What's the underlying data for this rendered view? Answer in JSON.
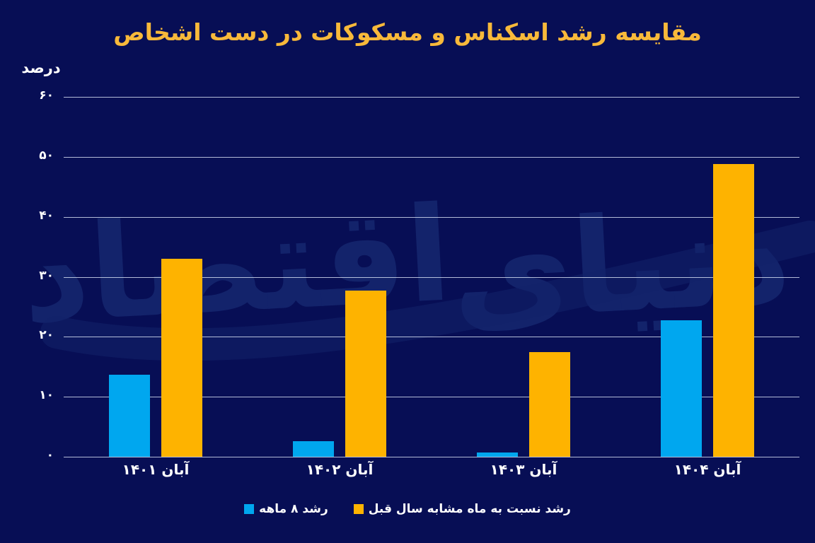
{
  "title": "مقایسه رشد اسکناس و مسکوکات در دست اشخاص",
  "watermark": {
    "text": "دنیای اقتصاد",
    "words": [
      "دنیای",
      "اقتصاد"
    ]
  },
  "y_axis_unit": "درصد",
  "colors": {
    "background": "#070e55",
    "title": "#f8b93a",
    "grid": "#dde6f7",
    "text": "#ffffff",
    "watermark": "#16276f",
    "blue": "#00a7ef",
    "orange": "#feb300"
  },
  "chart_data": {
    "type": "bar",
    "title": "مقایسه رشد اسکناس و مسکوکات در دست اشخاص",
    "ylabel": "درصد",
    "ylim": [
      0,
      60
    ],
    "grid": true,
    "legend_position": "bottom",
    "categories": [
      "آبان ۱۴۰۱",
      "آبان ۱۴۰۲",
      "آبان ۱۴۰۳",
      "آبان ۱۴۰۴"
    ],
    "ytick_values": [
      0,
      10,
      20,
      30,
      40,
      50,
      60
    ],
    "ytick_labels": [
      "۰",
      "۱۰",
      "۲۰",
      "۳۰",
      "۴۰",
      "۵۰",
      "۶۰"
    ],
    "series": [
      {
        "name": "رشد ۸ ماهه",
        "color": "#00a7ef",
        "values": [
          13.7,
          2.6,
          0.7,
          22.8
        ]
      },
      {
        "name": "رشد نسبت به ماه مشابه سال قبل",
        "color": "#feb300",
        "values": [
          33,
          27.7,
          17.5,
          48.8
        ]
      }
    ]
  },
  "legend": [
    {
      "label": "رشد ۸ ماهه",
      "color": "#00a7ef"
    },
    {
      "label": "رشد نسبت به ماه مشابه سال قبل",
      "color": "#feb300"
    }
  ]
}
